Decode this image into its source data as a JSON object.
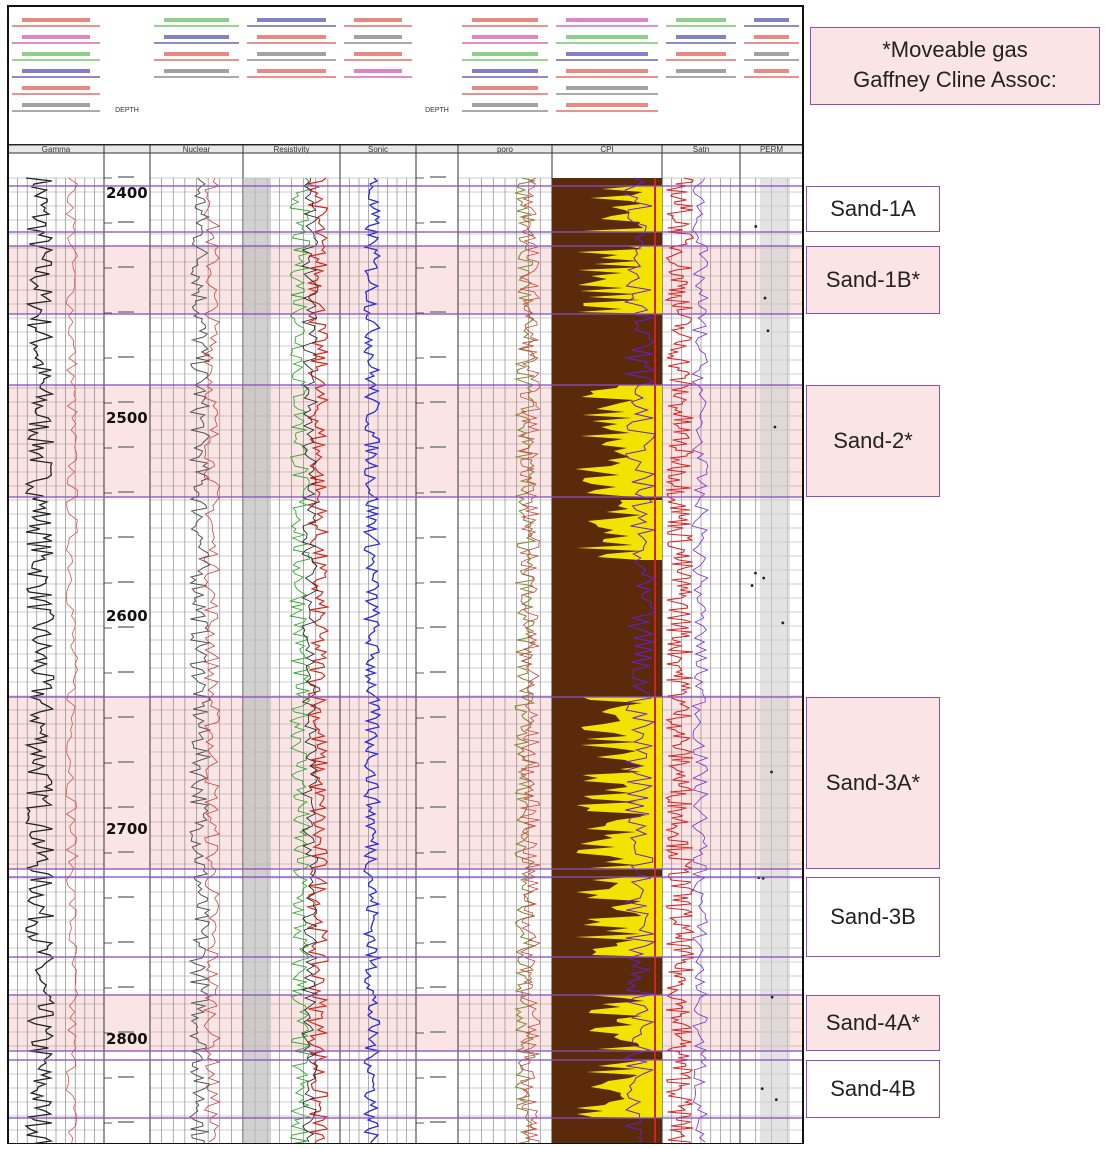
{
  "legend": {
    "line1": "*Moveable gas",
    "line2": "Gaffney Cline Assoc:"
  },
  "track_titles": [
    "Gamma",
    "",
    "Nuclear",
    "Resistivity",
    "Sonic",
    "",
    "poro",
    "CPI",
    "Satn",
    "PERM"
  ],
  "depth_track_header": "DEPTH",
  "major_depths": [
    "2400",
    "2500",
    "2600",
    "2700",
    "2800"
  ],
  "zones": [
    {
      "name": "Sand-1A",
      "gas": false
    },
    {
      "name": "Sand-1B*",
      "gas": true
    },
    {
      "name": "Sand-2*",
      "gas": true
    },
    {
      "name": "Sand-3A*",
      "gas": true
    },
    {
      "name": "Sand-3B",
      "gas": false
    },
    {
      "name": "Sand-4A*",
      "gas": true
    },
    {
      "name": "Sand-4B",
      "gas": false
    }
  ],
  "colors": {
    "zone_border": "#8a4fbf",
    "gas_fill": "#fbe4e4",
    "grid": "#555555",
    "gamma_curve": "#222222",
    "sonic_curve": "#2a2ad8",
    "resistivity_curve": "#d8261c",
    "cpi_shale": "#5a2a0a",
    "cpi_sand": "#f2e400",
    "porosity_curve": "#8a8a3a"
  }
}
